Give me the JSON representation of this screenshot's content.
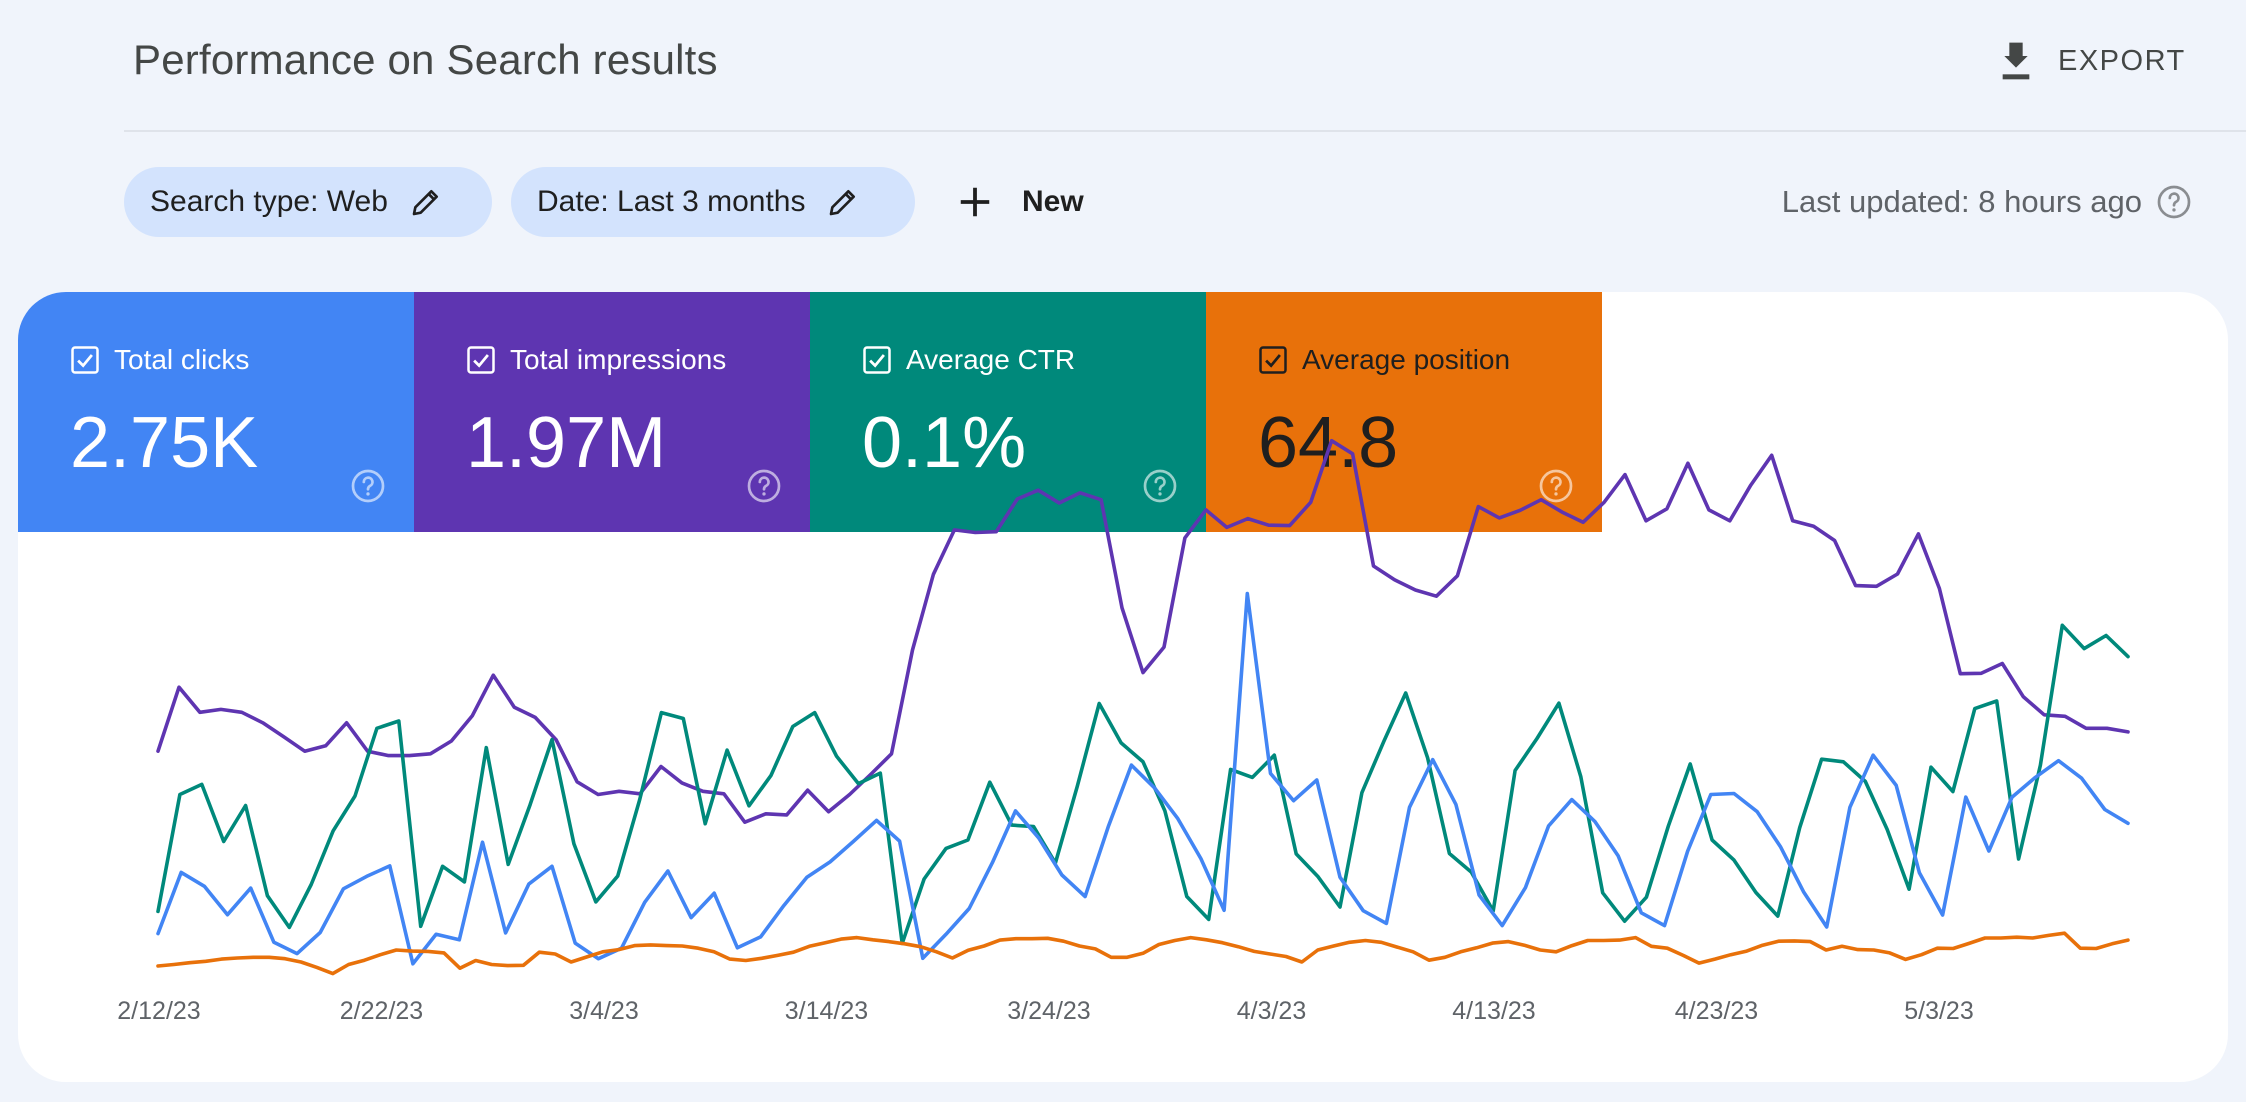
{
  "header": {
    "title": "Performance on Search results",
    "export_label": "EXPORT"
  },
  "filters": {
    "search_type_label": "Search type: Web",
    "date_label": "Date: Last 3 months",
    "new_label": "New",
    "last_updated": "Last updated: 8 hours ago"
  },
  "metrics": [
    {
      "label": "Total clicks",
      "value": "2.75K",
      "color": "#4285f4",
      "checked": true
    },
    {
      "label": "Total impressions",
      "value": "1.97M",
      "color": "#5e35b1",
      "checked": true
    },
    {
      "label": "Average CTR",
      "value": "0.1%",
      "color": "#00897b",
      "checked": true
    },
    {
      "label": "Average position",
      "value": "64.8",
      "color": "#e8710a",
      "checked": true
    }
  ],
  "icons": {
    "export": "download-icon",
    "edit": "pencil-icon",
    "add": "plus-icon",
    "help": "question-circle-icon",
    "checkbox": "checkbox-checked-icon"
  },
  "chart_data": {
    "type": "line",
    "x_tick_labels": [
      "2/12/23",
      "2/22/23",
      "3/4/23",
      "3/14/23",
      "3/24/23",
      "4/3/23",
      "4/13/23",
      "4/23/23",
      "5/3/23"
    ],
    "x_start": "2/12/23",
    "grid": false,
    "legend": "none",
    "series": [
      {
        "key": "impressions",
        "color": "#5e35b1",
        "values": [
          0.612,
          0.788,
          0.719,
          0.727,
          0.719,
          0.69,
          0.652,
          0.612,
          0.627,
          0.69,
          0.612,
          0.6,
          0.6,
          0.605,
          0.64,
          0.71,
          0.821,
          0.733,
          0.705,
          0.643,
          0.528,
          0.493,
          0.502,
          0.495,
          0.57,
          0.525,
          0.502,
          0.495,
          0.417,
          0.44,
          0.437,
          0.505,
          0.446,
          0.493,
          0.548,
          0.605,
          0.89,
          1.098,
          1.22,
          1.213,
          1.215,
          1.305,
          1.329,
          1.294,
          1.322,
          1.303,
          1.006,
          0.828,
          0.898,
          1.198,
          1.275,
          1.227,
          1.251,
          1.233,
          1.232,
          1.296,
          1.465,
          1.429,
          1.121,
          1.083,
          1.055,
          1.038,
          1.094,
          1.284,
          1.253,
          1.274,
          1.303,
          1.269,
          1.241,
          1.296,
          1.372,
          1.245,
          1.278,
          1.403,
          1.275,
          1.245,
          1.343,
          1.425,
          1.245,
          1.23,
          1.191,
          1.067,
          1.065,
          1.099,
          1.209,
          1.059,
          0.825,
          0.826,
          0.853,
          0.762,
          0.712,
          0.708,
          0.675,
          0.675,
          0.665
        ]
      },
      {
        "key": "ctr",
        "color": "#00897b",
        "values": [
          0.172,
          0.493,
          0.521,
          0.364,
          0.463,
          0.215,
          0.128,
          0.246,
          0.393,
          0.489,
          0.675,
          0.695,
          0.131,
          0.296,
          0.253,
          0.622,
          0.301,
          0.465,
          0.644,
          0.358,
          0.198,
          0.269,
          0.478,
          0.718,
          0.702,
          0.413,
          0.615,
          0.462,
          0.545,
          0.68,
          0.718,
          0.598,
          0.523,
          0.552,
          0.084,
          0.261,
          0.345,
          0.368,
          0.527,
          0.409,
          0.405,
          0.305,
          0.516,
          0.743,
          0.635,
          0.583,
          0.448,
          0.213,
          0.15,
          0.562,
          0.54,
          0.601,
          0.33,
          0.267,
          0.184,
          0.498,
          0.639,
          0.772,
          0.594,
          0.331,
          0.28,
          0.173,
          0.559,
          0.647,
          0.744,
          0.542,
          0.223,
          0.145,
          0.211,
          0.406,
          0.577,
          0.368,
          0.313,
          0.224,
          0.159,
          0.402,
          0.59,
          0.583,
          0.529,
          0.397,
          0.233,
          0.568,
          0.501,
          0.729,
          0.75,
          0.316,
          0.574,
          0.958,
          0.894,
          0.93,
          0.872
        ]
      },
      {
        "key": "clicks",
        "color": "#4285f4",
        "values": [
          0.111,
          0.279,
          0.241,
          0.163,
          0.236,
          0.087,
          0.056,
          0.114,
          0.234,
          0.268,
          0.297,
          0.028,
          0.109,
          0.094,
          0.362,
          0.113,
          0.247,
          0.296,
          0.085,
          0.042,
          0.071,
          0.197,
          0.283,
          0.155,
          0.222,
          0.072,
          0.102,
          0.188,
          0.266,
          0.308,
          0.364,
          0.422,
          0.365,
          0.043,
          0.109,
          0.18,
          0.306,
          0.448,
          0.374,
          0.272,
          0.213,
          0.404,
          0.574,
          0.511,
          0.427,
          0.317,
          0.175,
          1.045,
          0.551,
          0.476,
          0.533,
          0.266,
          0.174,
          0.139,
          0.458,
          0.589,
          0.466,
          0.217,
          0.133,
          0.237,
          0.407,
          0.479,
          0.419,
          0.325,
          0.168,
          0.133,
          0.337,
          0.493,
          0.496,
          0.446,
          0.35,
          0.226,
          0.129,
          0.458,
          0.601,
          0.518,
          0.278,
          0.162,
          0.486,
          0.338,
          0.486,
          0.54,
          0.586,
          0.538,
          0.452,
          0.414
        ]
      },
      {
        "key": "position",
        "color": "#e8710a",
        "values": [
          0.022,
          0.026,
          0.031,
          0.035,
          0.041,
          0.044,
          0.046,
          0.046,
          0.042,
          0.033,
          0.018,
          0.001,
          0.026,
          0.038,
          0.053,
          0.066,
          0.063,
          0.062,
          0.058,
          0.016,
          0.037,
          0.026,
          0.023,
          0.024,
          0.06,
          0.055,
          0.033,
          0.047,
          0.061,
          0.067,
          0.078,
          0.08,
          0.078,
          0.077,
          0.071,
          0.061,
          0.041,
          0.037,
          0.043,
          0.051,
          0.06,
          0.076,
          0.086,
          0.096,
          0.1,
          0.094,
          0.089,
          0.083,
          0.075,
          0.061,
          0.044,
          0.065,
          0.077,
          0.093,
          0.097,
          0.097,
          0.098,
          0.09,
          0.077,
          0.069,
          0.046,
          0.046,
          0.057,
          0.081,
          0.092,
          0.1,
          0.094,
          0.086,
          0.075,
          0.062,
          0.055,
          0.048,
          0.033,
          0.066,
          0.077,
          0.087,
          0.092,
          0.087,
          0.074,
          0.061,
          0.038,
          0.046,
          0.061,
          0.072,
          0.085,
          0.089,
          0.079,
          0.066,
          0.061,
          0.078,
          0.092,
          0.092,
          0.093,
          0.1,
          0.076,
          0.071,
          0.051,
          0.03,
          0.041,
          0.053,
          0.063,
          0.079,
          0.09,
          0.091,
          0.089,
          0.066,
          0.076,
          0.067,
          0.066,
          0.058,
          0.04,
          0.053,
          0.071,
          0.07,
          0.084,
          0.099,
          0.099,
          0.101,
          0.099,
          0.106,
          0.112,
          0.071,
          0.07,
          0.083,
          0.093
        ]
      }
    ]
  }
}
